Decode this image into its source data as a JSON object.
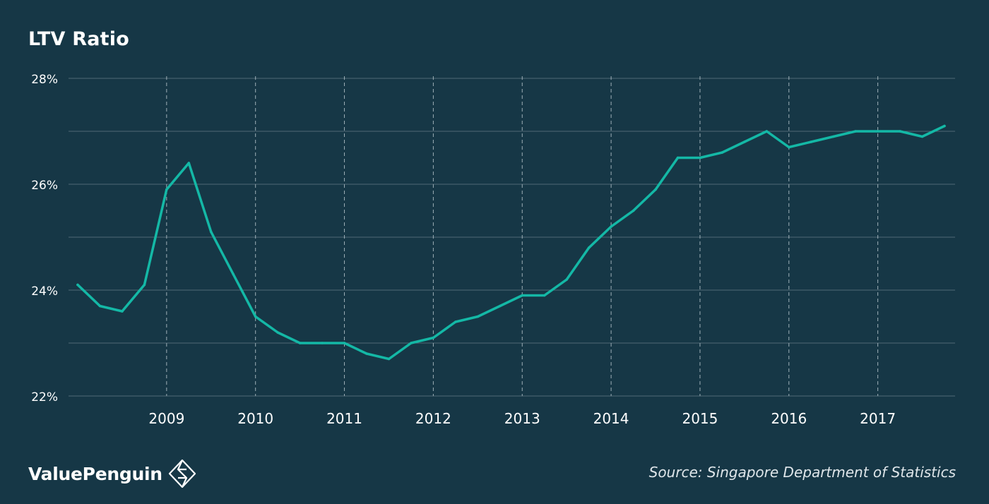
{
  "title": "LTV Ratio",
  "source": "Source: Singapore Department of Statistics",
  "brand": {
    "name": "ValuePenguin",
    "logo_icon": "valuepenguin-diamond-icon"
  },
  "colors": {
    "background": "#163746",
    "line": "#14b8a6",
    "grid": "#5b7380",
    "text": "#ffffff"
  },
  "chart_data": {
    "type": "line",
    "title": "LTV Ratio",
    "xlabel": "",
    "ylabel": "",
    "ylim": [
      22,
      28
    ],
    "yticks": [
      22,
      24,
      26,
      28
    ],
    "ytick_labels": [
      "22%",
      "24%",
      "26%",
      "28%"
    ],
    "xlim": [
      2008.0,
      2017.875
    ],
    "xticks": [
      2009,
      2010,
      2011,
      2012,
      2013,
      2014,
      2015,
      2016,
      2017
    ],
    "xtick_labels": [
      "2009",
      "2010",
      "2011",
      "2012",
      "2013",
      "2014",
      "2015",
      "2016",
      "2017"
    ],
    "grid": {
      "horizontal": "solid",
      "vertical": "dashed at year ticks"
    },
    "legend": "none",
    "series": [
      {
        "x": [
          2008.0,
          2008.25,
          2008.5,
          2008.75,
          2009.0,
          2009.25,
          2009.5,
          2009.75,
          2010.0,
          2010.25,
          2010.5,
          2010.75,
          2011.0,
          2011.25,
          2011.5,
          2011.75,
          2012.0,
          2012.25,
          2012.5,
          2012.75,
          2013.0,
          2013.25,
          2013.5,
          2013.75,
          2014.0,
          2014.25,
          2014.5,
          2014.75,
          2015.0,
          2015.25,
          2015.5,
          2015.75,
          2016.0,
          2016.25,
          2016.5,
          2016.75,
          2017.0,
          2017.25,
          2017.5,
          2017.75
        ],
        "values": [
          24.1,
          23.7,
          23.6,
          24.1,
          25.9,
          26.4,
          25.1,
          24.3,
          23.5,
          23.2,
          23.0,
          23.0,
          23.0,
          22.8,
          22.7,
          23.0,
          23.1,
          23.4,
          23.5,
          23.7,
          23.9,
          23.9,
          24.2,
          24.8,
          25.2,
          25.5,
          25.9,
          26.5,
          26.5,
          26.6,
          26.8,
          27.0,
          26.7,
          26.8,
          26.9,
          27.0,
          27.0,
          27.0,
          26.9,
          27.1
        ]
      }
    ]
  }
}
